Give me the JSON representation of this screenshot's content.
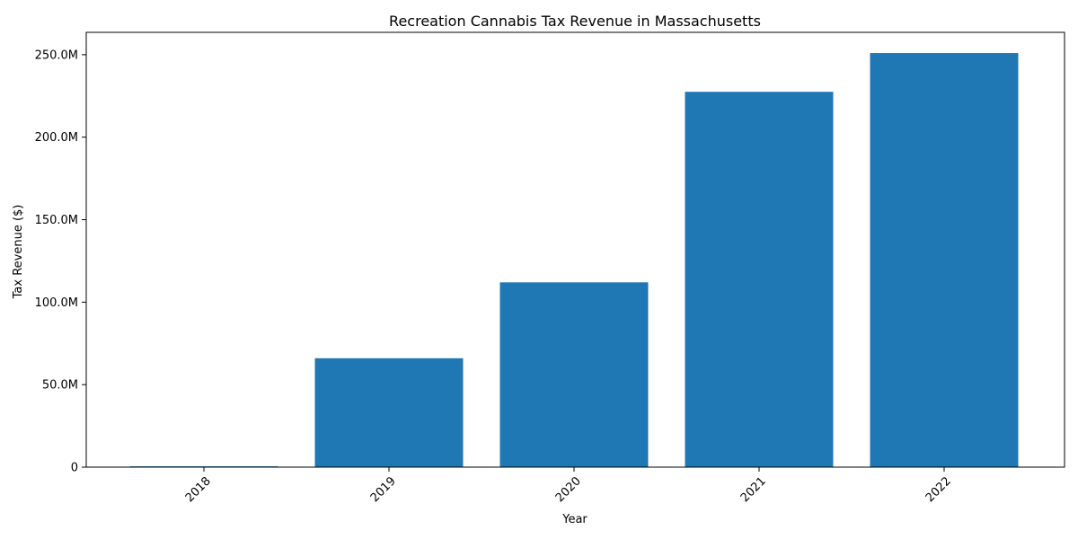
{
  "chart_data": {
    "type": "bar",
    "title": "Recreation Cannabis Tax Revenue in Massachusetts",
    "xlabel": "Year",
    "ylabel": "Tax Revenue ($)",
    "categories": [
      "2018",
      "2019",
      "2020",
      "2021",
      "2022"
    ],
    "values": [
      500000,
      66000000,
      112000000,
      227500000,
      251000000
    ],
    "ylim": [
      0,
      263550000
    ],
    "yticks": [
      0,
      50000000,
      100000000,
      150000000,
      200000000,
      250000000
    ],
    "ytick_labels": [
      "0",
      "50.0M",
      "100.0M",
      "150.0M",
      "200.0M",
      "250.0M"
    ],
    "x_tick_rotation_deg": 45,
    "bar_color": "#1f77b4",
    "grid": false,
    "legend": "none"
  }
}
